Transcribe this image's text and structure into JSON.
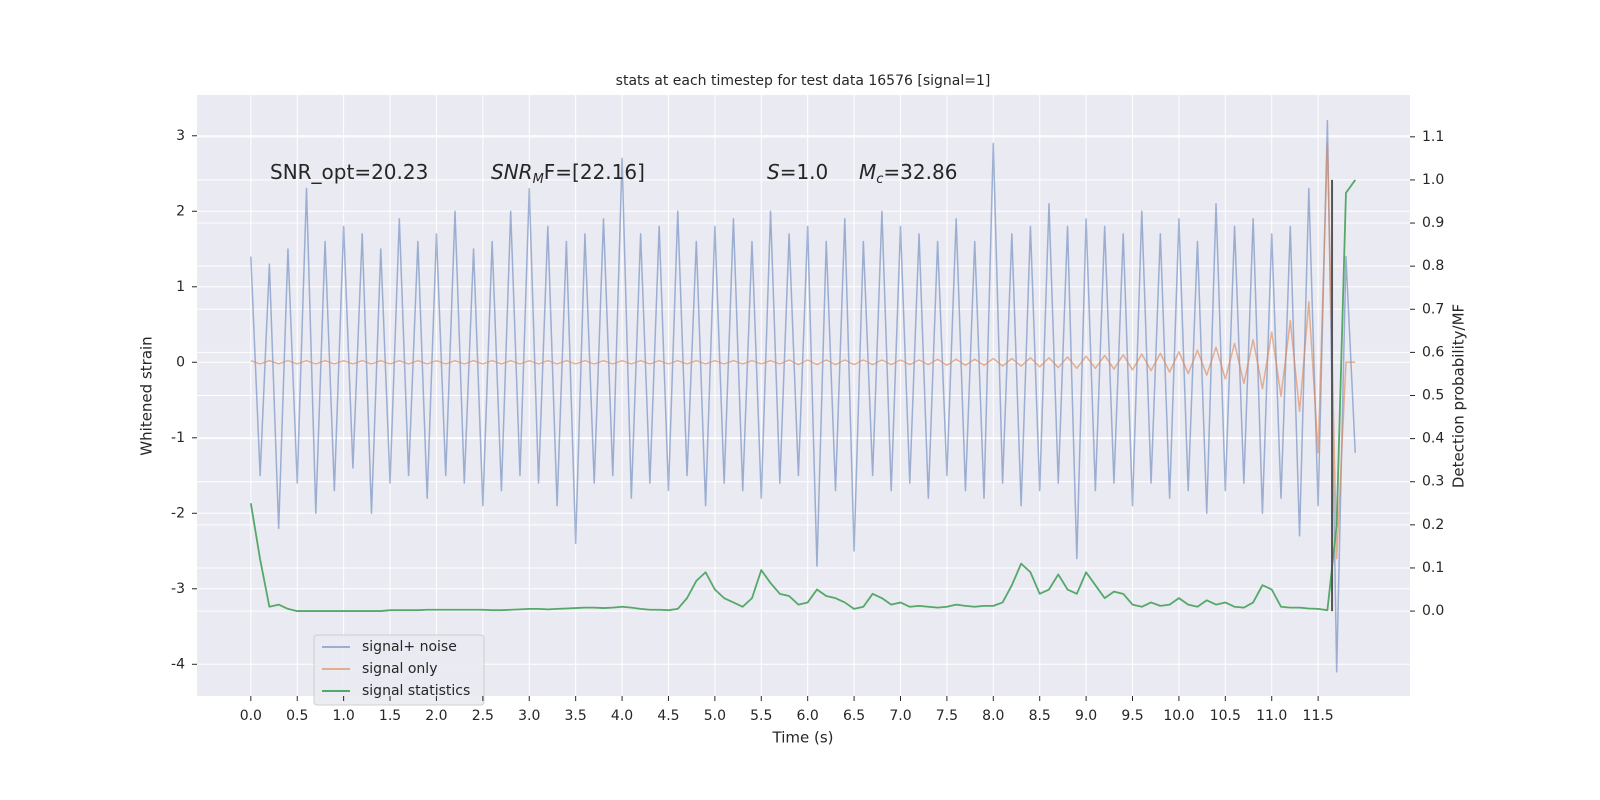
{
  "chart_data": {
    "type": "line",
    "title": "stats at each timestep for test data 16576 [signal=1]",
    "xlabel": "Time (s)",
    "ylabel": "Whitened strain",
    "y2label": "Detection probability/MF",
    "annotations": [
      [
        "SNR_opt=20.23"
      ],
      [
        "SNR",
        "M",
        "F=[22.16]"
      ],
      [
        "S",
        "=1.0"
      ],
      [
        "M",
        "c",
        "=32.86"
      ]
    ],
    "x": [
      0.0,
      0.1,
      0.2,
      0.3,
      0.4,
      0.5,
      0.6,
      0.7,
      0.8,
      0.9,
      1.0,
      1.1,
      1.2,
      1.3,
      1.4,
      1.5,
      1.6,
      1.7,
      1.8,
      1.9,
      2.0,
      2.1,
      2.2,
      2.3,
      2.4,
      2.5,
      2.6,
      2.7,
      2.8,
      2.9,
      3.0,
      3.1,
      3.2,
      3.3,
      3.4,
      3.5,
      3.6,
      3.7,
      3.8,
      3.9,
      4.0,
      4.1,
      4.2,
      4.3,
      4.4,
      4.5,
      4.6,
      4.7,
      4.8,
      4.9,
      5.0,
      5.1,
      5.2,
      5.3,
      5.4,
      5.5,
      5.6,
      5.7,
      5.8,
      5.9,
      6.0,
      6.1,
      6.2,
      6.3,
      6.4,
      6.5,
      6.6,
      6.7,
      6.8,
      6.9,
      7.0,
      7.1,
      7.2,
      7.3,
      7.4,
      7.5,
      7.6,
      7.7,
      7.8,
      7.9,
      8.0,
      8.1,
      8.2,
      8.3,
      8.4,
      8.5,
      8.6,
      8.7,
      8.8,
      8.9,
      9.0,
      9.1,
      9.2,
      9.3,
      9.4,
      9.5,
      9.6,
      9.7,
      9.8,
      9.9,
      10.0,
      10.1,
      10.2,
      10.3,
      10.4,
      10.5,
      10.6,
      10.7,
      10.8,
      10.9,
      11.0,
      11.1,
      11.2,
      11.3,
      11.4,
      11.5,
      11.6,
      11.7,
      11.8,
      11.9
    ],
    "series": [
      {
        "name": "signal+ noise",
        "color": "#4c72b0",
        "opacity": 0.5,
        "axis": "y",
        "values": [
          1.4,
          -1.5,
          1.3,
          -2.2,
          1.5,
          -1.6,
          2.3,
          -2.0,
          1.6,
          -1.7,
          1.8,
          -1.4,
          1.7,
          -2.0,
          1.5,
          -1.6,
          1.9,
          -1.5,
          1.6,
          -1.8,
          1.7,
          -1.5,
          2.0,
          -1.6,
          1.5,
          -1.9,
          1.6,
          -1.7,
          2.0,
          -1.5,
          2.3,
          -1.6,
          1.8,
          -1.9,
          1.6,
          -2.4,
          1.7,
          -1.6,
          1.9,
          -1.5,
          2.7,
          -1.8,
          1.7,
          -1.6,
          1.8,
          -1.7,
          2.0,
          -1.5,
          1.6,
          -1.9,
          1.8,
          -1.6,
          1.9,
          -1.7,
          1.6,
          -1.8,
          2.0,
          -1.6,
          1.7,
          -1.5,
          1.8,
          -2.7,
          1.6,
          -1.7,
          1.9,
          -2.5,
          1.6,
          -1.5,
          2.0,
          -1.7,
          1.8,
          -1.6,
          1.7,
          -1.8,
          1.6,
          -1.5,
          1.9,
          -1.7,
          1.6,
          -1.8,
          2.9,
          -1.6,
          1.7,
          -1.9,
          1.8,
          -1.7,
          2.1,
          -1.6,
          1.8,
          -2.6,
          1.9,
          -1.7,
          1.8,
          -1.6,
          1.7,
          -1.9,
          2.0,
          -1.6,
          1.7,
          -1.8,
          1.9,
          -1.7,
          1.6,
          -2.0,
          2.1,
          -1.7,
          1.8,
          -1.6,
          1.9,
          -2.0,
          1.7,
          -1.8,
          1.8,
          -2.3,
          2.3,
          -1.9,
          3.2,
          -4.1,
          1.4,
          -1.2
        ]
      },
      {
        "name": "signal only",
        "color": "#dd8452",
        "opacity": 0.6,
        "axis": "y",
        "values": [
          0.02,
          -0.02,
          0.02,
          -0.02,
          0.02,
          -0.02,
          0.02,
          -0.02,
          0.02,
          -0.02,
          0.02,
          -0.02,
          0.02,
          -0.02,
          0.02,
          -0.02,
          0.02,
          -0.02,
          0.02,
          -0.02,
          0.02,
          -0.02,
          0.02,
          -0.02,
          0.02,
          -0.02,
          0.02,
          -0.02,
          0.02,
          -0.02,
          0.02,
          -0.02,
          0.02,
          -0.02,
          0.02,
          -0.02,
          0.02,
          -0.02,
          0.02,
          -0.02,
          0.02,
          -0.02,
          0.02,
          -0.02,
          0.02,
          -0.02,
          0.02,
          -0.02,
          0.02,
          -0.02,
          0.02,
          -0.02,
          0.02,
          -0.02,
          0.02,
          -0.02,
          0.02,
          -0.02,
          0.03,
          -0.03,
          0.03,
          -0.03,
          0.03,
          -0.03,
          0.03,
          -0.03,
          0.03,
          -0.03,
          0.03,
          -0.03,
          0.03,
          -0.03,
          0.03,
          -0.03,
          0.04,
          -0.04,
          0.04,
          -0.04,
          0.04,
          -0.04,
          0.05,
          -0.05,
          0.05,
          -0.05,
          0.06,
          -0.06,
          0.06,
          -0.07,
          0.07,
          -0.08,
          0.08,
          -0.08,
          0.09,
          -0.09,
          0.1,
          -0.1,
          0.11,
          -0.11,
          0.12,
          -0.13,
          0.14,
          -0.15,
          0.16,
          -0.17,
          0.2,
          -0.22,
          0.25,
          -0.28,
          0.3,
          -0.35,
          0.4,
          -0.45,
          0.55,
          -0.65,
          0.8,
          -1.2,
          2.9,
          -2.6,
          0.0,
          0.0
        ]
      },
      {
        "name": "signal statistics",
        "color": "#55a868",
        "opacity": 1,
        "axis": "y2",
        "values": [
          0.25,
          0.12,
          0.01,
          0.015,
          0.005,
          0.0,
          0.0,
          0.0,
          0.0,
          0.0,
          0.0,
          0.0,
          0.0,
          0.0,
          0.0,
          0.002,
          0.002,
          0.002,
          0.002,
          0.003,
          0.003,
          0.003,
          0.003,
          0.003,
          0.003,
          0.003,
          0.002,
          0.002,
          0.003,
          0.004,
          0.005,
          0.005,
          0.004,
          0.005,
          0.006,
          0.007,
          0.008,
          0.008,
          0.007,
          0.008,
          0.01,
          0.008,
          0.005,
          0.003,
          0.003,
          0.002,
          0.005,
          0.03,
          0.07,
          0.09,
          0.05,
          0.03,
          0.02,
          0.01,
          0.03,
          0.095,
          0.065,
          0.04,
          0.035,
          0.015,
          0.02,
          0.05,
          0.035,
          0.03,
          0.02,
          0.005,
          0.01,
          0.04,
          0.03,
          0.015,
          0.02,
          0.01,
          0.012,
          0.01,
          0.008,
          0.01,
          0.015,
          0.012,
          0.01,
          0.012,
          0.012,
          0.02,
          0.06,
          0.11,
          0.09,
          0.04,
          0.05,
          0.085,
          0.05,
          0.04,
          0.09,
          0.06,
          0.03,
          0.045,
          0.04,
          0.015,
          0.01,
          0.02,
          0.012,
          0.015,
          0.03,
          0.015,
          0.01,
          0.025,
          0.015,
          0.02,
          0.01,
          0.008,
          0.02,
          0.06,
          0.05,
          0.01,
          0.008,
          0.008,
          0.006,
          0.005,
          0.002,
          0.2,
          0.97,
          1.0
        ]
      }
    ],
    "vline_x": 11.65,
    "vline_y2": [
      0,
      1
    ],
    "vline_color": "#555555",
    "xlim": [
      -0.58,
      12.49
    ],
    "xticks": [
      {
        "value": 0,
        "label": "0.0"
      },
      0.5,
      {
        "value": 1,
        "label": "1.0"
      },
      1.5,
      {
        "value": 2,
        "label": "2.0"
      },
      2.5,
      {
        "value": 3,
        "label": "3.0"
      },
      3.5,
      {
        "value": 4,
        "label": "4.0"
      },
      4.5,
      {
        "value": 5,
        "label": "5.0"
      },
      5.5,
      {
        "value": 6,
        "label": "6.0"
      },
      6.5,
      {
        "value": 7,
        "label": "7.0"
      },
      7.5,
      {
        "value": 8,
        "label": "8.0"
      },
      8.5,
      {
        "value": 9,
        "label": "9.0"
      },
      9.5,
      {
        "value": 10,
        "label": "10.0"
      },
      10.5,
      {
        "value": 11,
        "label": "11.0"
      },
      11.5
    ],
    "ylim": [
      -4.42,
      3.54
    ],
    "yticks": [
      -4,
      -3,
      -2,
      -1,
      0,
      1,
      2,
      3
    ],
    "y2lim": [
      -0.197,
      1.197
    ],
    "y2ticks": [
      {
        "value": 0,
        "label": "0.0"
      },
      0.1,
      0.2,
      0.3,
      0.4,
      0.5,
      0.6,
      0.7,
      0.8,
      0.9,
      {
        "value": 1,
        "label": "1.0"
      },
      1.1
    ],
    "grid": true,
    "legend": "lower left"
  }
}
